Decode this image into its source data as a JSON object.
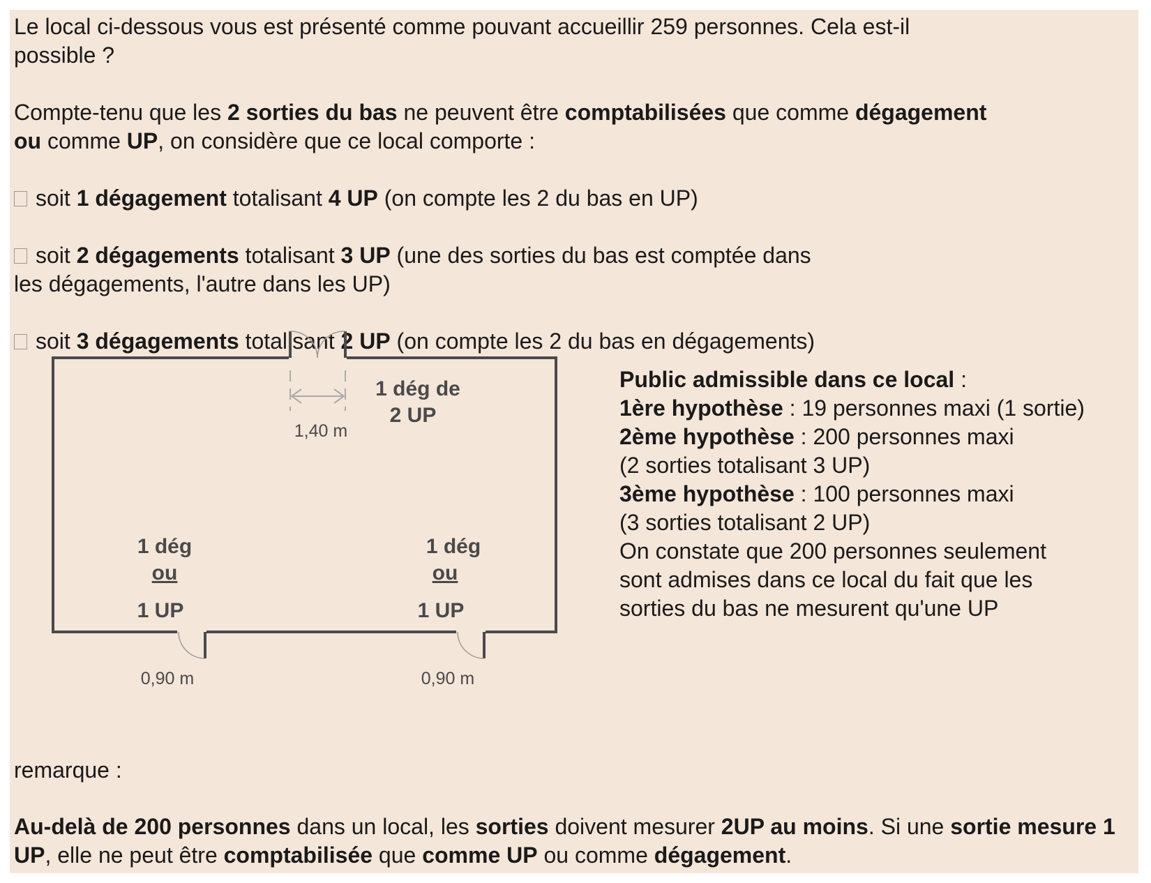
{
  "question": {
    "part1": "Le local ci-dessous vous est présenté comme pouvant accueillir 259 personnes. Cela est-il",
    "part2": "possible ?"
  },
  "context": {
    "t1": "Compte-tenu que les ",
    "b1": "2 sorties du bas",
    "t2": " ne peuvent être ",
    "b2": "comptabilisées",
    "t3": " que comme ",
    "b3": "dégagement",
    "b4": "ou",
    "t4": " comme ",
    "b5": "UP",
    "t5": ", on considère que ce local comporte :"
  },
  "options": [
    {
      "t1": "soit ",
      "b1": "1 dégagement",
      "t2": " totalisant ",
      "b2": "4 UP",
      "t3": " (on compte les 2 du bas en UP)"
    },
    {
      "t1": "soit ",
      "b1": "2 dégagements",
      "t2": " totalisant ",
      "b2": "3 UP",
      "t3": " (une des sorties du bas est comptée dans",
      "t4": "les dégagements, l'autre dans les UP)"
    },
    {
      "t1": "soit ",
      "b1": "3 dégagements",
      "t2": " totalisant ",
      "b2": "2 UP",
      "t3": " (on compte les 2 du bas en dégagements)"
    }
  ],
  "plan": {
    "top_label_1": "1 dég de",
    "top_label_2": "2 UP",
    "top_width": "1,40 m",
    "left_l1": "1 dég",
    "left_l2": "ou",
    "left_l3": "1 UP",
    "left_width": "0,90 m",
    "right_l1": "1 dég",
    "right_l2": "ou",
    "right_l3": "1 UP",
    "right_width": "0,90 m"
  },
  "public": {
    "title_bold": "Public admissible dans ce local",
    "title_rest": " :",
    "h1_bold": "1ère hypothèse",
    "h1_rest": " : 19 personnes maxi (1 sortie)",
    "h2_bold": "2ème hypothèse",
    "h2_rest": " : 200 personnes maxi",
    "h2_note": "(2 sorties totalisant 3 UP)",
    "h3_bold": "3ème hypothèse",
    "h3_rest": " : 100 personnes maxi",
    "h3_note": "(3 sorties totalisant 2 UP)",
    "concl_1": "On constate que 200 personnes seulement",
    "concl_2": "sont admises dans ce local du fait que les",
    "concl_3": "sorties du bas ne mesurent qu'une UP"
  },
  "remarque": "remarque :",
  "final": {
    "b1": "Au-delà de 200 personnes",
    "t1": " dans un local, les ",
    "b2": "sorties",
    "t2": " doivent mesurer ",
    "b3": "2UP au moins",
    "t3": ". Si une ",
    "b4": "sortie mesure 1 UP",
    "t4": ", elle ne peut être ",
    "b5": "comptabilisée",
    "t5": " que ",
    "b6": "comme UP",
    "t6": " ou comme ",
    "b7": "dégagement",
    "t7": "."
  }
}
